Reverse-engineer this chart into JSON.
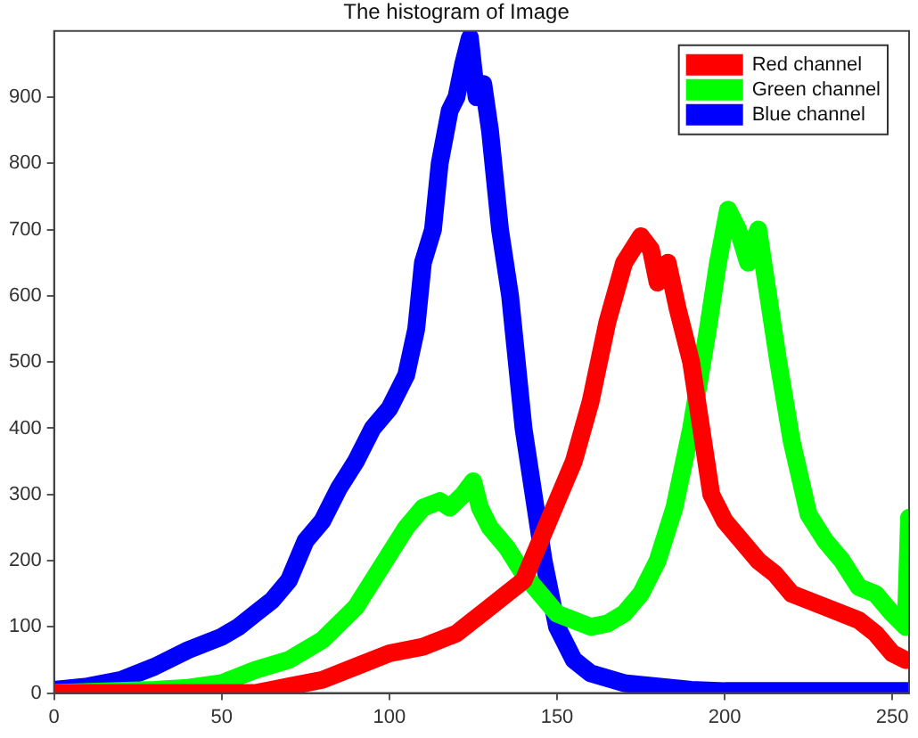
{
  "chart_data": {
    "type": "line",
    "title": "The histogram of Image",
    "xlim": [
      0,
      255
    ],
    "ylim": [
      0,
      1000
    ],
    "xticks": [
      0,
      50,
      100,
      150,
      200,
      250
    ],
    "yticks": [
      0,
      100,
      200,
      300,
      400,
      500,
      600,
      700,
      800,
      900
    ],
    "grid": false,
    "legend": "top right",
    "marker": "none",
    "line_style": "solid",
    "series": [
      {
        "name": "Red channel",
        "color": "#ff0000",
        "x": [
          0,
          30,
          60,
          70,
          80,
          90,
          100,
          110,
          120,
          125,
          130,
          135,
          140,
          145,
          150,
          155,
          160,
          165,
          170,
          175,
          178,
          180,
          183,
          186,
          190,
          193,
          196,
          200,
          205,
          210,
          215,
          220,
          230,
          240,
          245,
          250,
          254
        ],
        "values": [
          0,
          0,
          0,
          10,
          20,
          40,
          60,
          70,
          90,
          110,
          130,
          150,
          170,
          230,
          290,
          350,
          440,
          560,
          650,
          690,
          670,
          620,
          650,
          580,
          500,
          400,
          300,
          260,
          230,
          200,
          180,
          150,
          130,
          110,
          90,
          60,
          50
        ]
      },
      {
        "name": "Green channel",
        "color": "#00ff00",
        "x": [
          0,
          30,
          40,
          50,
          55,
          60,
          70,
          80,
          90,
          95,
          100,
          105,
          110,
          115,
          118,
          122,
          125,
          127,
          130,
          135,
          140,
          145,
          150,
          155,
          160,
          165,
          170,
          175,
          180,
          185,
          190,
          195,
          198,
          201,
          204,
          207,
          210,
          213,
          216,
          220,
          225,
          230,
          235,
          240,
          245,
          250,
          254,
          255
        ],
        "values": [
          0,
          5,
          8,
          15,
          25,
          35,
          50,
          80,
          130,
          170,
          210,
          250,
          280,
          290,
          280,
          300,
          320,
          280,
          250,
          220,
          180,
          150,
          120,
          110,
          100,
          105,
          120,
          150,
          200,
          280,
          400,
          550,
          650,
          730,
          700,
          650,
          700,
          600,
          500,
          380,
          270,
          230,
          200,
          160,
          150,
          120,
          100,
          265
        ]
      },
      {
        "name": "Blue channel",
        "color": "#0000ff",
        "x": [
          0,
          10,
          20,
          30,
          40,
          50,
          55,
          60,
          65,
          70,
          75,
          80,
          85,
          90,
          95,
          100,
          105,
          108,
          110,
          113,
          115,
          118,
          120,
          122,
          124,
          126,
          128,
          130,
          133,
          136,
          140,
          143,
          146,
          150,
          155,
          160,
          170,
          180,
          190,
          200,
          255
        ],
        "values": [
          5,
          10,
          20,
          40,
          65,
          85,
          100,
          120,
          140,
          170,
          230,
          260,
          310,
          350,
          400,
          430,
          480,
          550,
          650,
          700,
          800,
          880,
          900,
          950,
          990,
          900,
          920,
          850,
          700,
          600,
          400,
          300,
          200,
          100,
          50,
          30,
          15,
          10,
          5,
          3,
          3
        ]
      }
    ]
  }
}
